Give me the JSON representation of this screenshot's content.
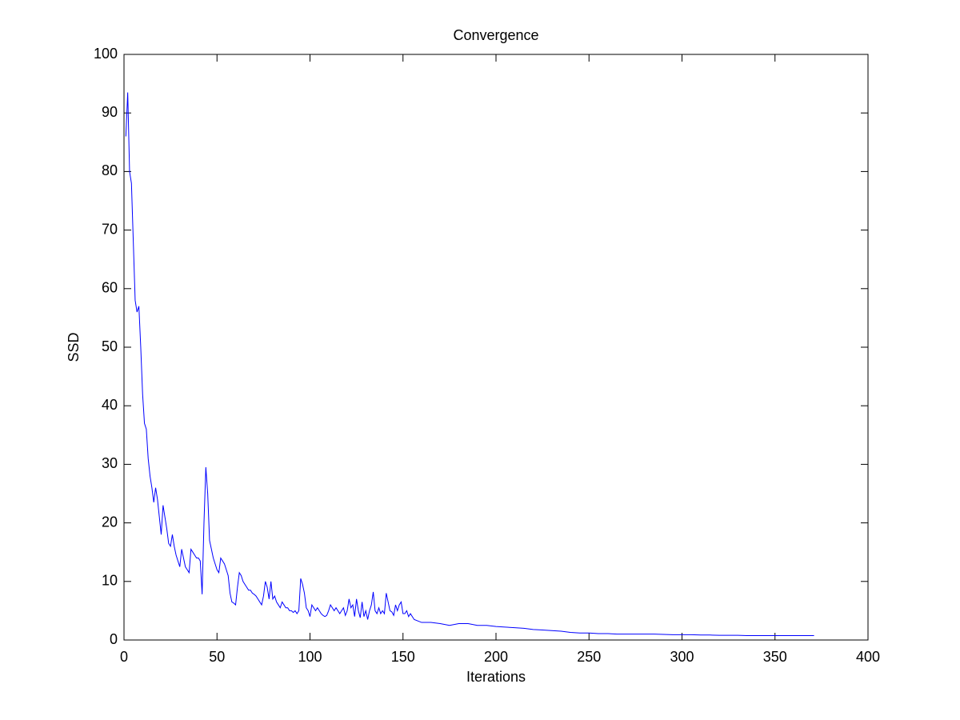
{
  "chart_data": {
    "type": "line",
    "title": "Convergence",
    "x_label": "Iterations",
    "y_label": "SSD",
    "xlim": [
      0,
      400
    ],
    "ylim": [
      0,
      100
    ],
    "xticks": [
      0,
      50,
      100,
      150,
      200,
      250,
      300,
      350,
      400
    ],
    "yticks": [
      0,
      10,
      20,
      30,
      40,
      50,
      60,
      70,
      80,
      90,
      100
    ],
    "grid": false,
    "x": [
      1,
      2,
      3,
      4,
      5,
      6,
      7,
      8,
      9,
      10,
      11,
      12,
      13,
      14,
      15,
      16,
      17,
      18,
      19,
      20,
      21,
      22,
      23,
      24,
      25,
      26,
      27,
      28,
      29,
      30,
      31,
      32,
      33,
      34,
      35,
      36,
      37,
      38,
      39,
      40,
      41,
      42,
      43,
      44,
      45,
      46,
      47,
      48,
      49,
      50,
      51,
      52,
      53,
      54,
      55,
      56,
      57,
      58,
      59,
      60,
      61,
      62,
      63,
      64,
      65,
      66,
      67,
      68,
      69,
      70,
      71,
      72,
      73,
      74,
      75,
      76,
      77,
      78,
      79,
      80,
      81,
      82,
      83,
      84,
      85,
      86,
      87,
      88,
      89,
      90,
      91,
      92,
      93,
      94,
      95,
      96,
      97,
      98,
      99,
      100,
      101,
      102,
      103,
      104,
      105,
      106,
      107,
      108,
      109,
      110,
      111,
      112,
      113,
      114,
      115,
      116,
      117,
      118,
      119,
      120,
      121,
      122,
      123,
      124,
      125,
      126,
      127,
      128,
      129,
      130,
      131,
      132,
      133,
      134,
      135,
      136,
      137,
      138,
      139,
      140,
      141,
      142,
      143,
      144,
      145,
      146,
      147,
      148,
      149,
      150,
      151,
      152,
      153,
      154,
      155,
      156,
      160,
      165,
      170,
      175,
      180,
      185,
      190,
      195,
      200,
      205,
      210,
      215,
      220,
      225,
      230,
      235,
      240,
      245,
      250,
      255,
      260,
      265,
      270,
      275,
      280,
      285,
      290,
      295,
      300,
      305,
      310,
      315,
      320,
      325,
      330,
      335,
      340,
      345,
      350,
      355,
      360,
      365,
      371
    ],
    "series": [
      {
        "name": "SSD",
        "color": "#0000ff",
        "values": [
          86,
          93.5,
          80,
          78,
          68,
          58,
          56,
          57,
          50,
          42,
          37,
          36,
          31,
          28,
          26,
          23.5,
          26,
          24,
          21,
          18,
          23,
          21,
          19,
          16.5,
          16,
          18,
          16,
          14.5,
          13.5,
          12.5,
          15.5,
          14,
          12.5,
          12,
          11.5,
          15.5,
          15,
          14.5,
          14,
          14,
          13.5,
          7.8,
          20,
          29.5,
          25,
          17,
          15.5,
          14,
          13,
          12,
          11.5,
          14,
          13.5,
          13,
          12,
          11,
          8,
          6.5,
          6.3,
          6,
          9,
          11.5,
          11,
          10,
          9.5,
          9,
          8.5,
          8.5,
          8,
          7.8,
          7.5,
          7,
          6.5,
          6,
          7.5,
          10,
          9,
          7,
          10,
          7,
          7.5,
          6.5,
          6,
          5.5,
          6.5,
          6,
          5.5,
          5.5,
          5,
          5,
          4.7,
          5,
          4.5,
          5,
          10.5,
          9.5,
          8,
          5.5,
          5,
          4,
          6,
          5.5,
          5,
          5.5,
          5,
          4.5,
          4.2,
          4,
          4.2,
          5,
          6,
          5.5,
          5,
          5.5,
          5,
          4.5,
          5,
          5.5,
          4.2,
          5,
          7,
          5.5,
          6,
          4,
          7,
          5,
          3.8,
          6.5,
          4,
          5,
          3.5,
          5,
          6,
          8.2,
          5,
          4.5,
          5.5,
          4.5,
          5,
          4.5,
          8,
          6.5,
          5,
          4.8,
          4.2,
          6,
          5,
          6,
          6.5,
          4.5,
          4.5,
          5,
          4,
          4.5,
          4,
          3.5,
          3,
          3,
          2.8,
          2.5,
          2.8,
          2.8,
          2.5,
          2.5,
          2.3,
          2.2,
          2.1,
          2,
          1.8,
          1.7,
          1.6,
          1.5,
          1.3,
          1.2,
          1.2,
          1.1,
          1.1,
          1.0,
          1.0,
          1.0,
          1.0,
          1.0,
          0.95,
          0.9,
          0.9,
          0.9,
          0.85,
          0.85,
          0.8,
          0.8,
          0.8,
          0.75,
          0.75,
          0.75,
          0.75,
          0.75,
          0.75,
          0.75,
          0.75
        ]
      }
    ]
  }
}
